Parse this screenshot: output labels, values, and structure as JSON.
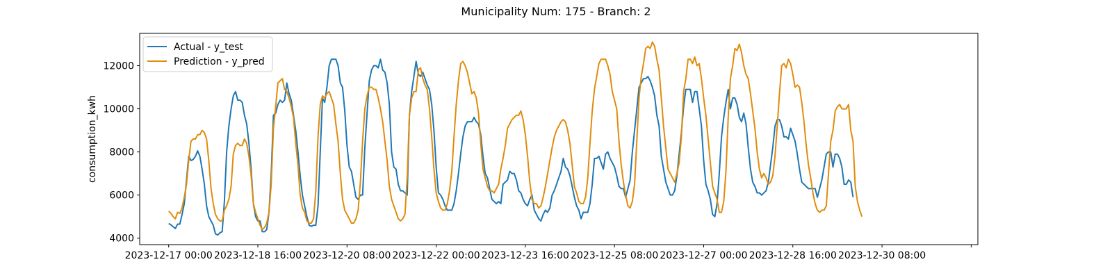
{
  "chart_data": {
    "type": "line",
    "title": "Municipality Num: 175 - Branch: 2",
    "xlabel": "",
    "ylabel": "consumption_kwh",
    "x_start": "2023-12-17 00:00",
    "x_step_hours": 1,
    "xlim": [
      "2023-12-16 11:00",
      "2024-01-01 03:00"
    ],
    "ylim": [
      3700,
      13500
    ],
    "yticks": [
      4000,
      6000,
      8000,
      10000,
      12000
    ],
    "ytick_labels": [
      "4000",
      "6000",
      "8000",
      "10000",
      "12000"
    ],
    "xticks": [
      "2023-12-17 00:00",
      "2023-12-18 16:00",
      "2023-12-20 08:00",
      "2023-12-22 00:00",
      "2023-12-23 16:00",
      "2023-12-25 08:00",
      "2023-12-27 00:00",
      "2023-12-28 16:00",
      "2023-12-30 08:00",
      "2024-01-01 00:00"
    ],
    "xtick_labels": [
      "2023-12-17 00:00",
      "2023-12-18 16:00",
      "2023-12-20 08:00",
      "2023-12-22 00:00",
      "2023-12-23 16:00",
      "2023-12-25 08:00",
      "2023-12-27 00:00",
      "2023-12-28 16:00",
      "2023-12-30 08:00",
      ""
    ],
    "grid": false,
    "legend_position": "top-left",
    "series": [
      {
        "name": "Actual - y_test",
        "color": "#1f77b4",
        "values": [
          4680,
          4620,
          4530,
          4450,
          4650,
          4650,
          5100,
          5600,
          6700,
          7800,
          7600,
          7650,
          7800,
          8050,
          7800,
          7200,
          6500,
          5500,
          5000,
          4800,
          4600,
          4200,
          4150,
          4250,
          4300,
          5700,
          8000,
          9200,
          10000,
          10600,
          10800,
          10400,
          10400,
          10300,
          9700,
          9300,
          8400,
          7200,
          5600,
          5000,
          4800,
          4800,
          4300,
          4300,
          4400,
          5200,
          7000,
          9700,
          9800,
          10200,
          10400,
          10300,
          10400,
          11200,
          10700,
          10400,
          9700,
          9000,
          8000,
          6900,
          6000,
          5500,
          5000,
          4600,
          4550,
          4600,
          4600,
          5500,
          8000,
          10500,
          10300,
          11000,
          12000,
          12300,
          12300,
          12300,
          12000,
          11200,
          11000,
          9900,
          8300,
          7300,
          7100,
          6500,
          5900,
          5800,
          6000,
          6000,
          8200,
          9800,
          11300,
          11800,
          12000,
          12000,
          11900,
          12300,
          11800,
          11700,
          11200,
          10200,
          8000,
          7300,
          7200,
          6500,
          6200,
          6200,
          6100,
          6000,
          9700,
          10800,
          11500,
          12200,
          11600,
          11500,
          11700,
          11400,
          11100,
          10900,
          10200,
          9000,
          7300,
          6100,
          6000,
          5800,
          5500,
          5300,
          5300,
          5300,
          5600,
          6200,
          7000,
          7900,
          8700,
          9200,
          9400,
          9400,
          9400,
          9600,
          9400,
          9300,
          8800,
          7800,
          7000,
          6800,
          6300,
          5800,
          5700,
          5600,
          5700,
          5600,
          6500,
          6600,
          6700,
          7100,
          7000,
          7000,
          6700,
          6200,
          6100,
          5800,
          5600,
          5500,
          5800,
          6000,
          5300,
          5100,
          4900,
          4800,
          5100,
          5300,
          5200,
          5400,
          6000,
          6200,
          6500,
          6800,
          7100,
          7700,
          7300,
          7200,
          6900,
          6400,
          5900,
          5500,
          5300,
          4900,
          5200,
          5200,
          5200,
          5600,
          6500,
          7700,
          7700,
          7800,
          7500,
          7200,
          7900,
          8000,
          7700,
          7500,
          7300,
          6900,
          6400,
          6300,
          6300,
          5900,
          6300,
          6700,
          8000,
          9000,
          10000,
          11000,
          11200,
          11400,
          11400,
          11500,
          11300,
          11000,
          10600,
          9700,
          9200,
          7800,
          7200,
          6600,
          6300,
          6000,
          6000,
          6200,
          6900,
          7900,
          8900,
          10100,
          10900,
          10900,
          10900,
          10300,
          10800,
          10800,
          10000,
          9200,
          7600,
          6500,
          6200,
          5800,
          5100,
          5000,
          5600,
          7000,
          8700,
          9600,
          10300,
          10900,
          10000,
          10500,
          10500,
          10200,
          9600,
          9400,
          9800,
          9300,
          8200,
          7200,
          6600,
          6400,
          6100,
          6100,
          6000,
          6100,
          6200,
          6600,
          7400,
          8200,
          9200,
          9500,
          9500,
          9200,
          8700,
          8700,
          8600,
          9100,
          8800,
          8500,
          7900,
          7200,
          6600,
          6500,
          6400,
          6300,
          6300,
          6300,
          6300,
          5900,
          6300,
          6700,
          7300,
          7900,
          8000,
          8000,
          7300,
          7900,
          7900,
          7700,
          7300,
          6500,
          6500,
          6700,
          6600,
          5900
        ]
      },
      {
        "name": "Prediction - y_pred",
        "color": "#e08c0c",
        "values": [
          5250,
          5150,
          5000,
          4900,
          5200,
          5150,
          5400,
          5900,
          6500,
          7600,
          8500,
          8600,
          8600,
          8800,
          8800,
          9000,
          8900,
          8600,
          7600,
          6300,
          5600,
          5100,
          4900,
          4800,
          4800,
          5300,
          5500,
          5800,
          6400,
          7900,
          8300,
          8400,
          8300,
          8300,
          8600,
          8400,
          7800,
          6900,
          5600,
          5200,
          4900,
          4600,
          4400,
          4500,
          4700,
          5200,
          6500,
          9100,
          10100,
          11200,
          11300,
          11400,
          10900,
          10800,
          10500,
          10100,
          9600,
          8400,
          7400,
          6000,
          5400,
          5200,
          4800,
          4700,
          4700,
          4900,
          6200,
          8700,
          10200,
          10600,
          10500,
          10700,
          10800,
          10500,
          10200,
          9300,
          8500,
          7000,
          5800,
          5300,
          5100,
          4900,
          4700,
          4700,
          4900,
          5300,
          6600,
          8500,
          10000,
          10600,
          11000,
          11000,
          10900,
          10900,
          10500,
          10000,
          9400,
          8500,
          7600,
          6400,
          5800,
          5500,
          5200,
          4900,
          4800,
          4900,
          5100,
          6800,
          9700,
          10500,
          10800,
          10800,
          11800,
          11900,
          11400,
          11100,
          10900,
          10000,
          8700,
          7200,
          6100,
          5700,
          5400,
          5300,
          5300,
          5600,
          6200,
          7100,
          8700,
          10200,
          11300,
          12100,
          12200,
          12000,
          11700,
          11200,
          10700,
          10800,
          10500,
          9800,
          8400,
          7200,
          6800,
          6400,
          6200,
          6200,
          6100,
          6300,
          6500,
          7200,
          7700,
          8300,
          9100,
          9300,
          9500,
          9600,
          9700,
          9700,
          9900,
          9500,
          8800,
          7800,
          6600,
          5800,
          5600,
          5600,
          5400,
          5500,
          5900,
          6400,
          7000,
          7600,
          8200,
          8700,
          9000,
          9200,
          9400,
          9500,
          9400,
          9000,
          8400,
          7400,
          6400,
          6100,
          5700,
          5600,
          5600,
          5900,
          6800,
          8400,
          9900,
          10900,
          11500,
          12100,
          12300,
          12300,
          12300,
          12000,
          11600,
          10800,
          10400,
          10000,
          8500,
          7400,
          6600,
          6000,
          5500,
          5400,
          5700,
          6500,
          8500,
          10500,
          11500,
          12100,
          12800,
          12900,
          12800,
          13100,
          12900,
          12300,
          11800,
          10500,
          9200,
          8200,
          7200,
          7000,
          6800,
          6600,
          7000,
          7500,
          8700,
          10800,
          11400,
          12300,
          12300,
          12100,
          12400,
          12000,
          12100,
          11400,
          10500,
          9700,
          8600,
          7500,
          6400,
          6100,
          5800,
          5200,
          5200,
          5700,
          7100,
          9600,
          11400,
          12000,
          12800,
          12700,
          13000,
          12600,
          12000,
          11600,
          11400,
          10700,
          9900,
          9100,
          8000,
          7200,
          6800,
          7000,
          6800,
          6500,
          6600,
          6900,
          7800,
          9200,
          10700,
          12000,
          12100,
          11900,
          12300,
          12100,
          11600,
          11000,
          11100,
          11000,
          10300,
          9400,
          8300,
          7400,
          6800,
          6100,
          5600,
          5300,
          5200,
          5300,
          5300,
          5500,
          7000,
          8500,
          9000,
          9900,
          10100,
          10200,
          10000,
          10000,
          10000,
          10200,
          9000,
          8500,
          6400,
          5700,
          5300,
          5000
        ]
      }
    ]
  }
}
